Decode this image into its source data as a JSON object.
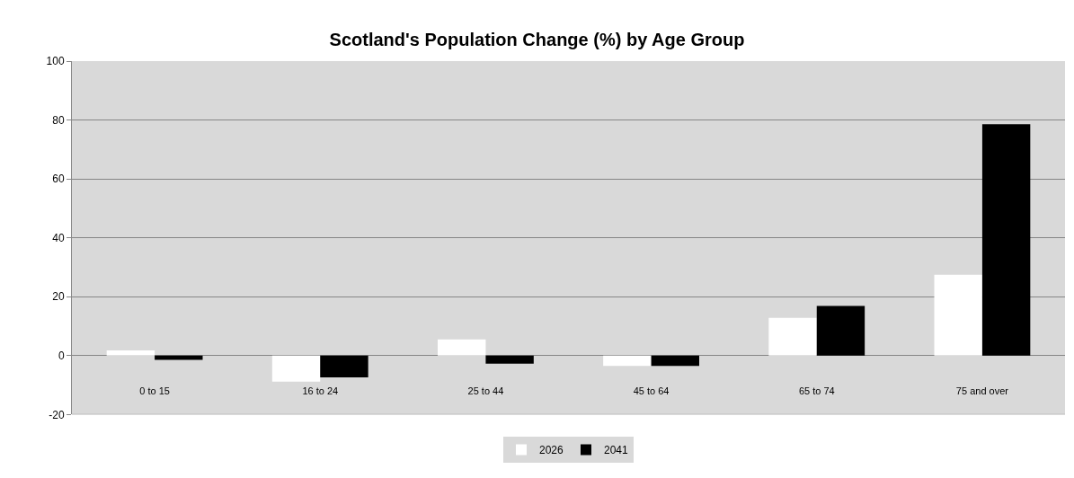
{
  "chart_data": {
    "type": "bar",
    "title": "Scotland's Population Change (%) by Age Group",
    "categories": [
      "0 to 15",
      "16 to 24",
      "25 to 44",
      "45 to 64",
      "65 to 74",
      "75 and over"
    ],
    "series": [
      {
        "name": "2026",
        "color": "#ffffff",
        "values": [
          1.8,
          -8.8,
          5.5,
          -3.5,
          12.8,
          27.5
        ]
      },
      {
        "name": "2041",
        "color": "#000000",
        "values": [
          -1.4,
          -7.4,
          -2.7,
          -3.5,
          16.9,
          78.6
        ]
      }
    ],
    "ylim": [
      -20,
      100
    ],
    "yticks": [
      -20,
      0,
      20,
      40,
      60,
      80,
      100
    ],
    "grid": "y",
    "legend": "bottom"
  }
}
